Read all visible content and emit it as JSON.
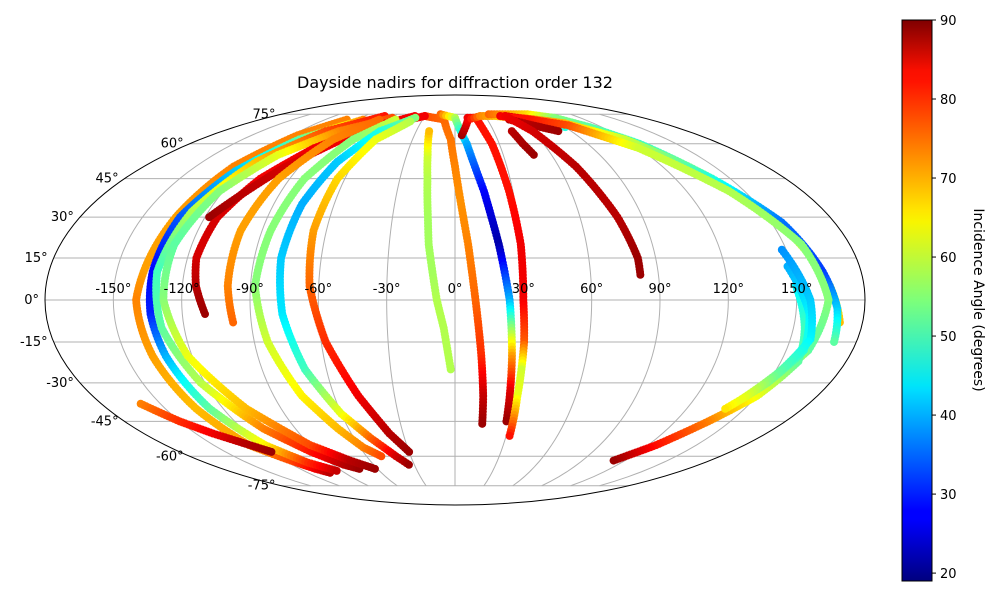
{
  "chart_data": {
    "type": "scatter",
    "projection": "mollweide",
    "title": "Dayside nadirs for diffraction order 132",
    "grid": true,
    "lon_ticks": [
      -150,
      -120,
      -90,
      -60,
      -30,
      0,
      30,
      60,
      90,
      120,
      150
    ],
    "lat_ticks": [
      -75,
      -60,
      -45,
      -30,
      -15,
      0,
      15,
      30,
      45,
      60,
      75
    ],
    "lon_tick_labels": [
      "-150°",
      "-120°",
      "-90°",
      "-60°",
      "-30°",
      "0°",
      "30°",
      "60°",
      "90°",
      "120°",
      "150°"
    ],
    "lat_tick_labels": [
      "-75°",
      "-60°",
      "-45°",
      "-30°",
      "-15°",
      "0°",
      "15°",
      "30°",
      "45°",
      "60°",
      "75°"
    ],
    "colorbar": {
      "label": "Incidence Angle (degrees)",
      "colormap": "jet",
      "range": [
        19,
        90
      ],
      "ticks": [
        20,
        30,
        40,
        50,
        60,
        70,
        80,
        90
      ],
      "tick_labels": [
        "20",
        "30",
        "40",
        "50",
        "60",
        "70",
        "80",
        "90"
      ]
    },
    "tracks": [
      {
        "points": [
          [
            -2,
            -25,
            58
          ],
          [
            -5,
            -10,
            58
          ],
          [
            -8,
            0,
            58
          ],
          [
            -10,
            10,
            57
          ],
          [
            -12,
            20,
            57
          ],
          [
            -13,
            30,
            57
          ],
          [
            -15,
            45,
            58
          ],
          [
            -17,
            55,
            60
          ],
          [
            -20,
            66,
            68
          ]
        ]
      },
      {
        "points": [
          [
            -30,
            74,
            76
          ],
          [
            -10,
            72,
            74
          ],
          [
            -3,
            62,
            73
          ],
          [
            0,
            50,
            72
          ],
          [
            3,
            35,
            71
          ],
          [
            6,
            20,
            72
          ],
          [
            9,
            0,
            74
          ],
          [
            12,
            -20,
            78
          ],
          [
            14,
            -35,
            85
          ],
          [
            15,
            -46,
            88
          ]
        ]
      },
      {
        "points": [
          [
            -15,
            75,
            74
          ],
          [
            0,
            73,
            58
          ],
          [
            8,
            60,
            40
          ],
          [
            15,
            40,
            28
          ],
          [
            20,
            20,
            22
          ],
          [
            24,
            0,
            40
          ],
          [
            26,
            -20,
            70
          ],
          [
            27,
            -33,
            83
          ],
          [
            28,
            -45,
            88
          ]
        ]
      },
      {
        "points": [
          [
            12,
            73,
            82
          ],
          [
            20,
            73,
            80
          ],
          [
            25,
            60,
            80
          ],
          [
            28,
            40,
            80
          ],
          [
            30,
            20,
            82
          ],
          [
            30,
            0,
            82
          ],
          [
            31,
            -15,
            75
          ],
          [
            31,
            -25,
            60
          ],
          [
            31,
            -35,
            62
          ],
          [
            32,
            -51,
            80
          ]
        ]
      },
      {
        "points": [
          [
            5,
            64,
            88
          ],
          [
            12,
            72,
            82
          ],
          [
            25,
            74,
            72
          ],
          [
            40,
            74,
            68
          ],
          [
            55,
            73,
            64
          ],
          [
            70,
            72,
            55
          ],
          [
            80,
            70,
            48
          ],
          [
            90,
            68,
            48
          ]
        ]
      },
      {
        "points": [
          [
            35,
            75,
            74
          ],
          [
            55,
            75,
            70
          ],
          [
            75,
            75,
            66
          ],
          [
            95,
            73,
            55
          ],
          [
            110,
            68,
            52
          ],
          [
            125,
            60,
            50
          ],
          [
            140,
            45,
            54
          ],
          [
            155,
            25,
            58
          ],
          [
            165,
            5,
            60
          ],
          [
            170,
            -8,
            68
          ]
        ]
      },
      {
        "points": [
          [
            50,
            74,
            84
          ],
          [
            60,
            73,
            82
          ],
          [
            75,
            72,
            72
          ],
          [
            95,
            70,
            68
          ],
          [
            120,
            62,
            60
          ],
          [
            140,
            45,
            48
          ],
          [
            155,
            28,
            36
          ],
          [
            163,
            10,
            32
          ],
          [
            168,
            -3,
            42
          ],
          [
            170,
            -15,
            52
          ]
        ]
      },
      {
        "points": [
          [
            45,
            74,
            82
          ],
          [
            55,
            73,
            80
          ],
          [
            70,
            72,
            80
          ],
          [
            95,
            69,
            76
          ],
          [
            120,
            58,
            60
          ],
          [
            142,
            40,
            58
          ],
          [
            158,
            20,
            55
          ],
          [
            164,
            0,
            55
          ],
          [
            160,
            -18,
            52
          ],
          [
            152,
            -28,
            70
          ]
        ]
      },
      {
        "points": [
          [
            50,
            72,
            86
          ],
          [
            60,
            70,
            86
          ],
          [
            70,
            68,
            87
          ],
          [
            80,
            66,
            88
          ]
        ]
      },
      {
        "points": [
          [
            50,
            74,
            82
          ],
          [
            60,
            66,
            84
          ],
          [
            70,
            50,
            86
          ],
          [
            78,
            30,
            86
          ],
          [
            82,
            15,
            88
          ],
          [
            82,
            9,
            88
          ]
        ]
      },
      {
        "points": [
          [
            44,
            66,
            86
          ],
          [
            46,
            60,
            87
          ],
          [
            49,
            55,
            88
          ]
        ]
      },
      {
        "points": [
          [
            150,
            5,
            45
          ],
          [
            155,
            -10,
            50
          ],
          [
            158,
            -22,
            52
          ],
          [
            150,
            -35,
            62
          ],
          [
            138,
            -45,
            72
          ],
          [
            125,
            -55,
            80
          ],
          [
            112,
            -62,
            88
          ]
        ]
      },
      {
        "points": [
          [
            148,
            12,
            40
          ],
          [
            156,
            -5,
            45
          ],
          [
            158,
            -18,
            48
          ],
          [
            150,
            -30,
            55
          ],
          [
            140,
            -40,
            65
          ]
        ]
      },
      {
        "points": [
          [
            148,
            18,
            38
          ],
          [
            156,
            0,
            42
          ],
          [
            159,
            -14,
            45
          ],
          [
            152,
            -26,
            52
          ],
          [
            144,
            -36,
            62
          ]
        ]
      },
      {
        "points": [
          [
            -100,
            72,
            72
          ],
          [
            -116,
            64,
            72
          ],
          [
            -128,
            50,
            72
          ],
          [
            -134,
            30,
            70
          ],
          [
            -138,
            10,
            70
          ],
          [
            -140,
            0,
            72
          ],
          [
            -138,
            -20,
            70
          ],
          [
            -134,
            -40,
            68
          ],
          [
            -128,
            -55,
            70
          ],
          [
            -116,
            -62,
            76
          ],
          [
            -108,
            -66,
            82
          ],
          [
            -102,
            -68,
            86
          ]
        ]
      },
      {
        "points": [
          [
            -85,
            72,
            72
          ],
          [
            -110,
            62,
            52
          ],
          [
            -124,
            48,
            42
          ],
          [
            -132,
            30,
            34
          ],
          [
            -134,
            10,
            28
          ],
          [
            -134,
            -5,
            30
          ],
          [
            -132,
            -20,
            40
          ],
          [
            -127,
            -40,
            52
          ],
          [
            -118,
            -55,
            64
          ],
          [
            -106,
            -63,
            78
          ],
          [
            -94,
            -67,
            85
          ]
        ]
      },
      {
        "points": [
          [
            -70,
            74,
            80
          ],
          [
            -100,
            66,
            76
          ],
          [
            -118,
            52,
            68
          ],
          [
            -128,
            32,
            58
          ],
          [
            -132,
            10,
            50
          ],
          [
            -130,
            -10,
            52
          ],
          [
            -122,
            -30,
            58
          ],
          [
            -108,
            -48,
            72
          ],
          [
            -94,
            -58,
            80
          ],
          [
            -82,
            -64,
            86
          ],
          [
            -74,
            -66,
            88
          ]
        ]
      },
      {
        "points": [
          [
            -60,
            73,
            76
          ],
          [
            -90,
            66,
            72
          ],
          [
            -110,
            55,
            62
          ],
          [
            -122,
            40,
            55
          ],
          [
            -128,
            20,
            52
          ],
          [
            -128,
            0,
            55
          ],
          [
            -122,
            -20,
            62
          ],
          [
            -108,
            -40,
            68
          ],
          [
            -90,
            -55,
            76
          ],
          [
            -74,
            -62,
            86
          ],
          [
            -62,
            -66,
            88
          ]
        ]
      },
      {
        "points": [
          [
            -40,
            74,
            82
          ],
          [
            -70,
            68,
            82
          ],
          [
            -92,
            58,
            82
          ],
          [
            -106,
            45,
            82
          ],
          [
            -114,
            30,
            84
          ],
          [
            -116,
            15,
            84
          ],
          [
            -114,
            5,
            86
          ],
          [
            -110,
            -5,
            88
          ]
        ]
      },
      {
        "points": [
          [
            -30,
            74,
            82
          ],
          [
            -55,
            70,
            82
          ],
          [
            -80,
            62,
            82
          ],
          [
            -98,
            50,
            84
          ],
          [
            -110,
            38,
            86
          ],
          [
            -118,
            30,
            88
          ]
        ]
      },
      {
        "points": [
          [
            -70,
            72,
            74
          ],
          [
            -86,
            62,
            72
          ],
          [
            -96,
            45,
            70
          ],
          [
            -100,
            25,
            70
          ],
          [
            -100,
            5,
            72
          ],
          [
            -98,
            -8,
            74
          ]
        ]
      },
      {
        "points": [
          [
            -55,
            72,
            60
          ],
          [
            -72,
            62,
            55
          ],
          [
            -82,
            45,
            55
          ],
          [
            -86,
            25,
            55
          ],
          [
            -88,
            5,
            55
          ],
          [
            -84,
            -15,
            60
          ],
          [
            -76,
            -35,
            64
          ],
          [
            -66,
            -48,
            68
          ],
          [
            -58,
            -56,
            72
          ],
          [
            -50,
            -60,
            76
          ]
        ]
      },
      {
        "points": [
          [
            -38,
            73,
            55
          ],
          [
            -58,
            66,
            48
          ],
          [
            -70,
            52,
            42
          ],
          [
            -76,
            35,
            40
          ],
          [
            -78,
            15,
            42
          ],
          [
            -76,
            -5,
            44
          ],
          [
            -70,
            -25,
            50
          ],
          [
            -60,
            -42,
            62
          ],
          [
            -50,
            -52,
            74
          ],
          [
            -40,
            -60,
            84
          ],
          [
            -34,
            -64,
            88
          ]
        ]
      },
      {
        "points": [
          [
            -40,
            71,
            58
          ],
          [
            -56,
            62,
            62
          ],
          [
            -64,
            45,
            66
          ],
          [
            -66,
            25,
            70
          ],
          [
            -64,
            5,
            74
          ],
          [
            -58,
            -15,
            78
          ],
          [
            -48,
            -35,
            82
          ],
          [
            -38,
            -50,
            86
          ],
          [
            -30,
            -58,
            88
          ]
        ]
      },
      {
        "points": [
          [
            -160,
            -38,
            72
          ],
          [
            -150,
            -45,
            78
          ],
          [
            -140,
            -50,
            82
          ],
          [
            -130,
            -54,
            86
          ],
          [
            -120,
            -58,
            88
          ]
        ]
      }
    ]
  }
}
